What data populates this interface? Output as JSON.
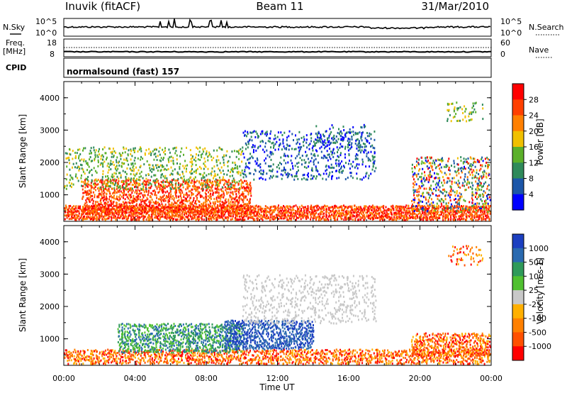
{
  "header": {
    "station": "Inuvik (fitACF)",
    "beam": "Beam 11",
    "date": "31/Mar/2010"
  },
  "top_panels": {
    "nsky_label": "N.Sky",
    "nsky_ticks": [
      "10^5",
      "10^0"
    ],
    "nsearch_label": "N.Search",
    "nsearch_ticks": [
      "10^5",
      "10^0"
    ],
    "freq_label_1": "Freq.",
    "freq_label_2": "[MHz]",
    "freq_ticks": [
      "18",
      "8"
    ],
    "nave_label": "Nave",
    "nave_ticks": [
      "60",
      "0"
    ],
    "cpid_label": "CPID",
    "cpid_text": "normalsound (fast) 157"
  },
  "chart_data": [
    {
      "type": "heatmap",
      "name": "power",
      "ylabel": "Slant Range [km]",
      "xlabel": "",
      "ylim": [
        180,
        4500
      ],
      "yticks": [
        "1000",
        "2000",
        "3000",
        "4000"
      ],
      "colorbar_label": "Power [dB]",
      "colorbar_ticks": [
        "4",
        "8",
        "12",
        "16",
        "20",
        "24",
        "28"
      ],
      "colors": [
        "#0000ff",
        "#1c56a8",
        "#2f8a5a",
        "#5bb02a",
        "#f0c000",
        "#ff8000",
        "#ff4000",
        "#ff0000"
      ],
      "scatter_regions": [
        {
          "t": [
            0.0,
            24.0
          ],
          "r": [
            200,
            700
          ],
          "level": "high",
          "density": 0.9
        },
        {
          "t": [
            1.0,
            10.5
          ],
          "r": [
            450,
            1500
          ],
          "level": "high",
          "density": 0.6
        },
        {
          "t": [
            0.0,
            10.0
          ],
          "r": [
            1200,
            2500
          ],
          "level": "mid",
          "density": 0.25
        },
        {
          "t": [
            10.0,
            17.5
          ],
          "r": [
            1500,
            3000
          ],
          "level": "low",
          "density": 0.25
        },
        {
          "t": [
            14.0,
            17.0
          ],
          "r": [
            2500,
            3200
          ],
          "level": "low",
          "density": 0.2
        },
        {
          "t": [
            19.5,
            24.0
          ],
          "r": [
            500,
            2200
          ],
          "level": "mix",
          "density": 0.35
        },
        {
          "t": [
            21.5,
            23.5
          ],
          "r": [
            3300,
            3900
          ],
          "level": "mid",
          "density": 0.2
        }
      ]
    },
    {
      "type": "heatmap",
      "name": "velocity",
      "ylabel": "Slant Range [km]",
      "xlabel": "Time UT",
      "ylim": [
        180,
        4500
      ],
      "xlim": [
        "00:00",
        "24:00"
      ],
      "xticks": [
        "00:00",
        "04:00",
        "08:00",
        "12:00",
        "16:00",
        "20:00",
        "00:00"
      ],
      "yticks": [
        "1000",
        "2000",
        "3000",
        "4000"
      ],
      "colorbar_label": "Velocity [m s-1]",
      "colorbar_ticks": [
        "1000",
        "500",
        "100",
        "25",
        "-25",
        "-100",
        "-500",
        "-1000"
      ],
      "colors": [
        "#1c3fc0",
        "#2a6ab0",
        "#2f9a5a",
        "#50c030",
        "#c8c8c8",
        "#ffb000",
        "#ff8000",
        "#ff5000",
        "#ff0000"
      ],
      "scatter_regions": [
        {
          "t": [
            0.0,
            24.0
          ],
          "r": [
            200,
            700
          ],
          "level": "neg",
          "density": 0.6
        },
        {
          "t": [
            3.0,
            10.0
          ],
          "r": [
            600,
            1500
          ],
          "level": "pos",
          "density": 0.6
        },
        {
          "t": [
            9.0,
            14.0
          ],
          "r": [
            700,
            1600
          ],
          "level": "strongpos",
          "density": 0.7
        },
        {
          "t": [
            10.0,
            17.5
          ],
          "r": [
            1500,
            3000
          ],
          "level": "zero",
          "density": 0.25
        },
        {
          "t": [
            19.5,
            24.0
          ],
          "r": [
            500,
            1200
          ],
          "level": "neg",
          "density": 0.6
        },
        {
          "t": [
            21.5,
            23.5
          ],
          "r": [
            3300,
            3900
          ],
          "level": "neg",
          "density": 0.2
        }
      ]
    }
  ]
}
